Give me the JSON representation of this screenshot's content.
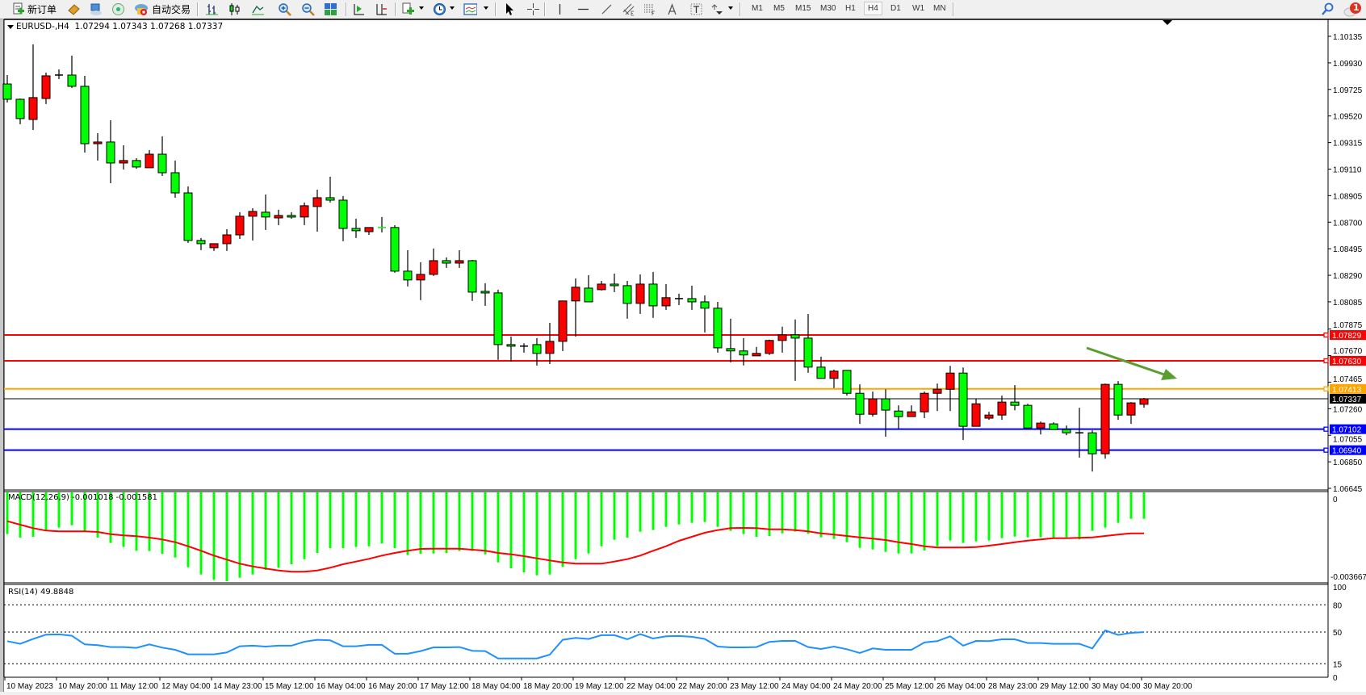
{
  "toolbar": {
    "new_order_label": "新订单",
    "auto_trading_label": "自动交易",
    "timeframes": [
      "M1",
      "M5",
      "M15",
      "M30",
      "H1",
      "H4",
      "D1",
      "W1",
      "MN"
    ],
    "active_timeframe": "H4",
    "notification_count": "1",
    "icons": [
      "new-order-icon",
      "history-center-icon",
      "market-watch-icon",
      "signals-icon",
      "auto-trading-icon",
      "bar-chart-icon",
      "candlestick-icon",
      "line-chart-icon",
      "zoom-in-icon",
      "zoom-out-icon",
      "tile-windows-icon",
      "chart-shift-icon",
      "autoscroll-icon",
      "indicators-icon",
      "periods-icon",
      "templates-icon",
      "cursor-icon",
      "crosshair-icon",
      "vertical-line-icon",
      "horizontal-line-icon",
      "trendline-icon",
      "equidistant-channel-icon",
      "fibonacci-icon",
      "text-icon",
      "text-label-icon",
      "arrows-icon",
      "search-icon",
      "notification-icon"
    ]
  },
  "chart": {
    "symbol_header": "EURUSD-,H4",
    "ohlc_readout": "1.07294 1.07343 1.07268 1.07337",
    "price_axis_ticks": [
      "1.10135",
      "1.09930",
      "1.09725",
      "1.09520",
      "1.09315",
      "1.09110",
      "1.08905",
      "1.08700",
      "1.08495",
      "1.08290",
      "1.08085",
      "1.07875",
      "1.07670",
      "1.07465",
      "1.07260",
      "1.07055",
      "1.06850",
      "1.06645"
    ],
    "horizontal_lines": [
      {
        "price": "1.07829",
        "color": "#ff0000"
      },
      {
        "price": "1.07630",
        "color": "#ff0000"
      },
      {
        "price": "1.07413",
        "color": "#ffa500"
      },
      {
        "price": "1.07102",
        "color": "#0000ff"
      },
      {
        "price": "1.06940",
        "color": "#0000ff"
      }
    ],
    "bid_line": {
      "price": "1.07337",
      "color": "#000000"
    },
    "annotation_arrow": {
      "color": "#5a9e32",
      "direction": "down-right"
    },
    "bear_color": "#00ff00",
    "bull_color": "#ff0000",
    "time_axis_labels": [
      "10 May 2023",
      "10 May 20:00",
      "11 May 12:00",
      "12 May 04:00",
      "14 May 23:00",
      "15 May 12:00",
      "16 May 04:00",
      "16 May 20:00",
      "17 May 12:00",
      "18 May 04:00",
      "18 May 20:00",
      "19 May 12:00",
      "22 May 04:00",
      "22 May 20:00",
      "23 May 12:00",
      "24 May 04:00",
      "24 May 20:00",
      "25 May 12:00",
      "26 May 04:00",
      "28 May 23:00",
      "29 May 12:00",
      "30 May 04:00",
      "30 May 20:00"
    ]
  },
  "macd": {
    "header": "MACD(12,26,9) -0.001018 -0.001581",
    "axis_top": "0",
    "axis_bottom": "-0.003667",
    "histogram_color": "#00ff00",
    "signal_color": "#ff0000"
  },
  "rsi": {
    "header": "RSI(14) 49.8848",
    "axis_labels": [
      "100",
      "80",
      "50",
      "15",
      "0"
    ],
    "levels": [
      80,
      50,
      15
    ],
    "line_color": "#1e90ff"
  },
  "chart_data": [
    {
      "type": "candlestick",
      "symbol": "EURUSD-",
      "timeframe": "H4",
      "fields": [
        "open",
        "high",
        "low",
        "close"
      ],
      "ylim": [
        1.06645,
        1.10135
      ],
      "candles": [
        [
          1.09767,
          1.09836,
          1.09624,
          1.09649
        ],
        [
          1.09649,
          1.09655,
          1.09456,
          1.095
        ],
        [
          1.09493,
          1.10073,
          1.09412,
          1.09662
        ],
        [
          1.09655,
          1.09855,
          1.09612,
          1.0983
        ],
        [
          1.09836,
          1.0988,
          1.09805,
          1.09836
        ],
        [
          1.09836,
          1.09986,
          1.09736,
          1.09749
        ],
        [
          1.09749,
          1.0983,
          1.09238,
          1.09306
        ],
        [
          1.09306,
          1.09387,
          1.09176,
          1.09319
        ],
        [
          1.09319,
          1.09487,
          1.09001,
          1.09157
        ],
        [
          1.09157,
          1.09294,
          1.09107,
          1.09176
        ],
        [
          1.09176,
          1.09194,
          1.09113,
          1.09126
        ],
        [
          1.0912,
          1.09257,
          1.0912,
          1.09225
        ],
        [
          1.09225,
          1.09363,
          1.09057,
          1.09082
        ],
        [
          1.09082,
          1.09176,
          1.08889,
          1.08926
        ],
        [
          1.08926,
          1.08976,
          1.0854,
          1.08559
        ],
        [
          1.08559,
          1.08578,
          1.08484,
          1.08534
        ],
        [
          1.08503,
          1.08534,
          1.08478,
          1.08534
        ],
        [
          1.08534,
          1.08646,
          1.08478,
          1.08602
        ],
        [
          1.08602,
          1.08777,
          1.08571,
          1.08746
        ],
        [
          1.08746,
          1.08808,
          1.08559,
          1.08783
        ],
        [
          1.08777,
          1.08914,
          1.0864,
          1.0874
        ],
        [
          1.08733,
          1.08796,
          1.08677,
          1.08752
        ],
        [
          1.08752,
          1.08777,
          1.08727,
          1.0874
        ],
        [
          1.0874,
          1.08852,
          1.08677,
          1.08827
        ],
        [
          1.08821,
          1.08951,
          1.08627,
          1.08889
        ],
        [
          1.08889,
          1.09051,
          1.08852,
          1.0887
        ],
        [
          1.0887,
          1.08902,
          1.08553,
          1.08652
        ],
        [
          1.08652,
          1.08727,
          1.08578,
          1.08634
        ],
        [
          1.08627,
          1.08659,
          1.08602,
          1.08659
        ],
        [
          1.08659,
          1.0874,
          1.08621,
          1.08658
        ],
        [
          1.08659,
          1.08677,
          1.0831,
          1.08322
        ],
        [
          1.08322,
          1.08484,
          1.08204,
          1.08254
        ],
        [
          1.08254,
          1.08391,
          1.08098,
          1.08297
        ],
        [
          1.08297,
          1.08497,
          1.08285,
          1.08403
        ],
        [
          1.08403,
          1.08428,
          1.08347,
          1.08384
        ],
        [
          1.08384,
          1.08484,
          1.08347,
          1.08403
        ],
        [
          1.08403,
          1.08409,
          1.08092,
          1.0816
        ],
        [
          1.08166,
          1.08229,
          1.08054,
          1.08154
        ],
        [
          1.08154,
          1.08179,
          1.07637,
          1.07755
        ],
        [
          1.07755,
          1.07817,
          1.07624,
          1.07743
        ],
        [
          1.07743,
          1.07765,
          1.07693,
          1.07743
        ],
        [
          1.07755,
          1.07805,
          1.07593,
          1.07687
        ],
        [
          1.07687,
          1.07923,
          1.07605,
          1.0778
        ],
        [
          1.0778,
          1.08092,
          1.07705,
          1.08092
        ],
        [
          1.08092,
          1.08266,
          1.07817,
          1.08198
        ],
        [
          1.08191,
          1.08291,
          1.08085,
          1.08085
        ],
        [
          1.08179,
          1.08247,
          1.08173,
          1.08222
        ],
        [
          1.08222,
          1.08303,
          1.0816,
          1.0821
        ],
        [
          1.0821,
          1.08247,
          1.07955,
          1.08073
        ],
        [
          1.08073,
          1.08297,
          1.07992,
          1.08222
        ],
        [
          1.08222,
          1.08316,
          1.07961,
          1.08054
        ],
        [
          1.08054,
          1.08222,
          1.08023,
          1.08117
        ],
        [
          1.0811,
          1.08148,
          1.0806,
          1.0811
        ],
        [
          1.0811,
          1.0821,
          1.08023,
          1.08085
        ],
        [
          1.08085,
          1.08135,
          1.07849,
          1.08036
        ],
        [
          1.08036,
          1.08085,
          1.07693,
          1.0773
        ],
        [
          1.07724,
          1.07955,
          1.07618,
          1.07706
        ],
        [
          1.07706,
          1.07805,
          1.07594,
          1.07675
        ],
        [
          1.07668,
          1.07737,
          1.07668,
          1.07687
        ],
        [
          1.07687,
          1.07793,
          1.07675,
          1.07787
        ],
        [
          1.07787,
          1.07893,
          1.07693,
          1.0783
        ],
        [
          1.0783,
          1.07949,
          1.07475,
          1.07805
        ],
        [
          1.07805,
          1.07991,
          1.07537,
          1.07581
        ],
        [
          1.07581,
          1.07662,
          1.07494,
          1.07494
        ],
        [
          1.07494,
          1.07562,
          1.07419,
          1.0755
        ],
        [
          1.07556,
          1.07556,
          1.07361,
          1.07379
        ],
        [
          1.07379,
          1.07448,
          1.07143,
          1.07217
        ],
        [
          1.07217,
          1.07392,
          1.07199,
          1.07336
        ],
        [
          1.07336,
          1.0741,
          1.07044,
          1.07249
        ],
        [
          1.07242,
          1.07286,
          1.07106,
          1.07199
        ],
        [
          1.07199,
          1.07286,
          1.07199,
          1.07236
        ],
        [
          1.07236,
          1.07392,
          1.07187,
          1.07379
        ],
        [
          1.07379,
          1.07454,
          1.07242,
          1.0741
        ],
        [
          1.0741,
          1.07591,
          1.07242,
          1.07535
        ],
        [
          1.07535,
          1.07578,
          1.07018,
          1.07124
        ],
        [
          1.07124,
          1.07336,
          1.07124,
          1.07298
        ],
        [
          1.07187,
          1.07236,
          1.07174,
          1.07211
        ],
        [
          1.07211,
          1.07361,
          1.07174,
          1.07311
        ],
        [
          1.07311,
          1.07442,
          1.07248,
          1.07286
        ],
        [
          1.07286,
          1.07298,
          1.07111,
          1.07111
        ],
        [
          1.07111,
          1.07161,
          1.07061,
          1.07149
        ],
        [
          1.07143,
          1.07155,
          1.07099,
          1.07099
        ],
        [
          1.07099,
          1.0713,
          1.07055,
          1.07074
        ],
        [
          1.07074,
          1.07267,
          1.06882,
          1.07074
        ],
        [
          1.07074,
          1.07093,
          1.06775,
          1.06912
        ],
        [
          1.06912,
          1.07454,
          1.06874,
          1.07448
        ],
        [
          1.07448,
          1.07473,
          1.07174,
          1.07211
        ],
        [
          1.07211,
          1.07311,
          1.07143,
          1.07305
        ],
        [
          1.07294,
          1.07343,
          1.07268,
          1.07337
        ]
      ]
    },
    {
      "type": "bar",
      "indicator": "MACD(12,26,9)",
      "ylim": [
        -0.003667,
        0
      ],
      "series": [
        {
          "name": "MACD",
          "values": [
            -0.001612,
            -0.001747,
            -0.001716,
            -0.001477,
            -0.001362,
            -0.001269,
            -0.001508,
            -0.001747,
            -0.001955,
            -0.002111,
            -0.002257,
            -0.002267,
            -0.002371,
            -0.002517,
            -0.002891,
            -0.003172,
            -0.00338,
            -0.003432,
            -0.003297,
            -0.003172,
            -0.002995,
            -0.002912,
            -0.002777,
            -0.002579,
            -0.00234,
            -0.002153,
            -0.002153,
            -0.002111,
            -0.00208,
            -0.001976,
            -0.002153,
            -0.002423,
            -0.002371,
            -0.002361,
            -0.00234,
            -0.002267,
            -0.002267,
            -0.002392,
            -0.002704,
            -0.002933,
            -0.003089,
            -0.003203,
            -0.003172,
            -0.002881,
            -0.002579,
            -0.002361,
            -0.00208,
            -0.00183,
            -0.001747,
            -0.001518,
            -0.001456,
            -0.001331,
            -0.001238,
            -0.001175,
            -0.001144,
            -0.001331,
            -0.001487,
            -0.001612,
            -0.001716,
            -0.001685,
            -0.001581,
            -0.001518,
            -0.001602,
            -0.001737,
            -0.001799,
            -0.001924,
            -0.002142,
            -0.002205,
            -0.002298,
            -0.002361,
            -0.002361,
            -0.002246,
            -0.00208,
            -0.001862,
            -0.001955,
            -0.001893,
            -0.001862,
            -0.001768,
            -0.001706,
            -0.001737,
            -0.001737,
            -0.001747,
            -0.001737,
            -0.00182,
            -0.001487,
            -0.001362,
            -0.001175,
            -0.001019,
            -0.001018
          ]
        },
        {
          "name": "Signal",
          "values": [
            -0.001113,
            -0.001248,
            -0.001383,
            -0.001477,
            -0.001508,
            -0.001508,
            -0.001508,
            -0.001529,
            -0.001612,
            -0.001664,
            -0.001695,
            -0.001747,
            -0.00182,
            -0.001924,
            -0.00208,
            -0.002257,
            -0.002444,
            -0.0026,
            -0.002756,
            -0.00286,
            -0.002943,
            -0.003016,
            -0.003068,
            -0.003068,
            -0.003016,
            -0.002912,
            -0.002777,
            -0.002673,
            -0.002569,
            -0.002444,
            -0.00234,
            -0.002257,
            -0.002184,
            -0.002174,
            -0.002174,
            -0.002174,
            -0.002215,
            -0.002257,
            -0.00234,
            -0.002392,
            -0.002465,
            -0.002548,
            -0.002631,
            -0.002704,
            -0.002756,
            -0.002756,
            -0.002756,
            -0.002673,
            -0.002579,
            -0.002444,
            -0.002257,
            -0.00208,
            -0.001872,
            -0.001716,
            -0.00156,
            -0.001456,
            -0.001383,
            -0.001373,
            -0.001383,
            -0.001425,
            -0.001425,
            -0.001456,
            -0.001508,
            -0.001581,
            -0.001633,
            -0.001685,
            -0.001737,
            -0.001789,
            -0.001841,
            -0.001924,
            -0.001997,
            -0.00208,
            -0.002132,
            -0.002132,
            -0.002132,
            -0.002111,
            -0.002059,
            -0.001997,
            -0.001924,
            -0.001862,
            -0.00182,
            -0.001768,
            -0.001768,
            -0.001758,
            -0.001737,
            -0.001685,
            -0.001633,
            -0.001581,
            -0.001581
          ]
        }
      ]
    },
    {
      "type": "line",
      "indicator": "RSI(14)",
      "ylim": [
        0,
        100
      ],
      "values": [
        39.9,
        37.0,
        42.3,
        47.1,
        47.4,
        45.9,
        36.4,
        35.5,
        33.4,
        33.4,
        32.5,
        36.4,
        32.8,
        30.4,
        25.4,
        25.4,
        25.4,
        27.5,
        34.3,
        34.9,
        34.0,
        34.9,
        34.9,
        39.3,
        41.4,
        40.8,
        34.3,
        34.3,
        35.8,
        35.8,
        26.0,
        26.0,
        29.0,
        33.1,
        33.1,
        33.4,
        29.3,
        29.0,
        20.9,
        20.9,
        20.9,
        20.9,
        25.1,
        41.4,
        43.5,
        42.3,
        46.5,
        46.5,
        42.0,
        47.7,
        42.9,
        45.3,
        45.6,
        44.7,
        42.3,
        34.0,
        33.1,
        33.1,
        33.4,
        39.1,
        40.2,
        40.2,
        33.4,
        31.3,
        34.0,
        31.0,
        26.9,
        31.9,
        30.4,
        30.4,
        30.4,
        38.5,
        39.9,
        45.3,
        34.9,
        40.2,
        39.9,
        42.0,
        42.0,
        37.9,
        37.9,
        37.0,
        37.0,
        37.0,
        31.9,
        51.8,
        46.8,
        49.1,
        49.8848
      ]
    }
  ]
}
